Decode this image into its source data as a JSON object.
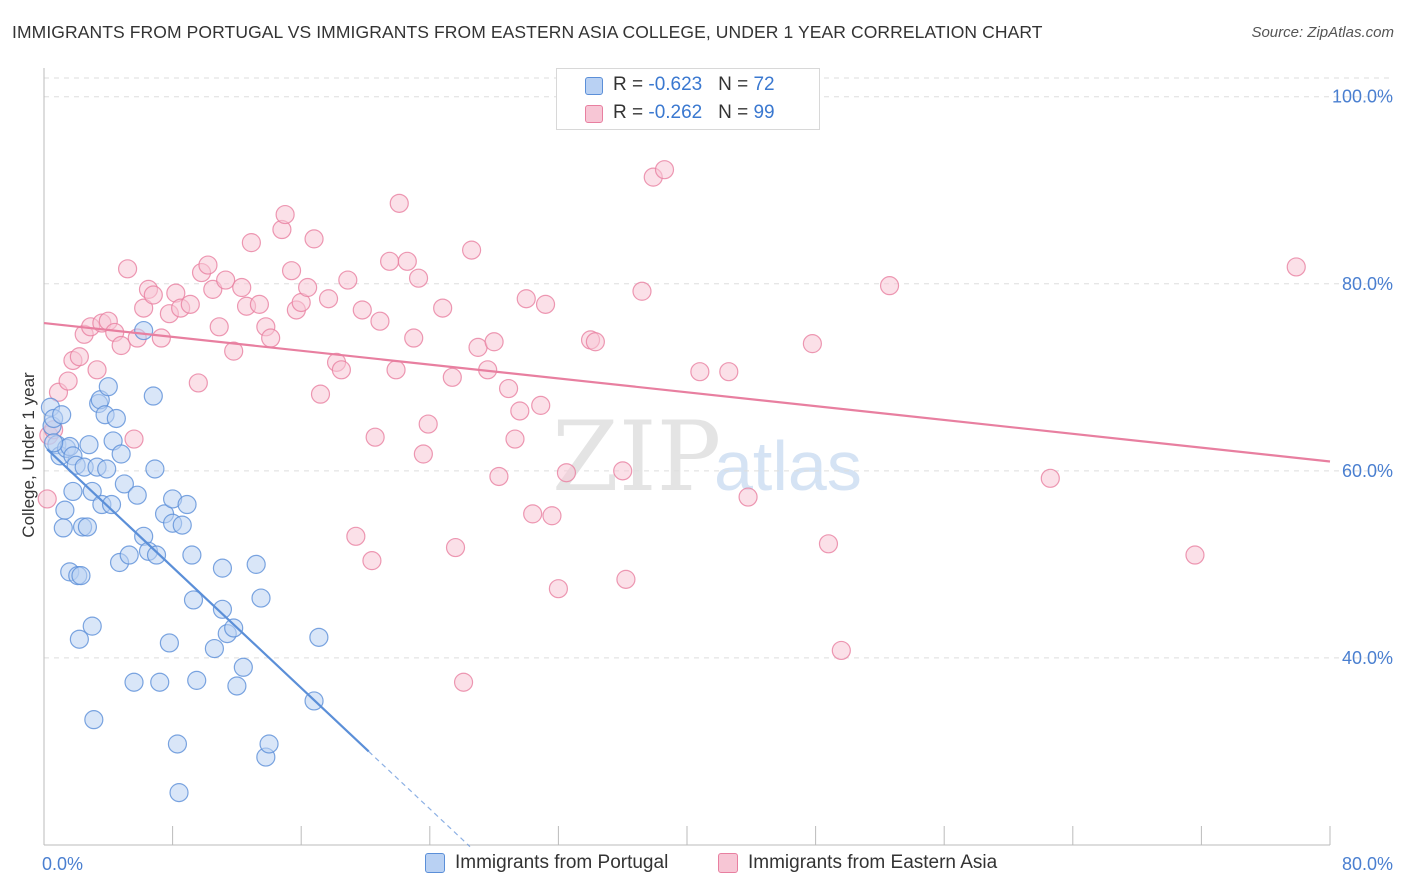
{
  "header": {
    "title": "IMMIGRANTS FROM PORTUGAL VS IMMIGRANTS FROM EASTERN ASIA COLLEGE, UNDER 1 YEAR CORRELATION CHART",
    "source": "Source: ZipAtlas.com"
  },
  "legend": {
    "rows": [
      {
        "r_label": "R = ",
        "r_value": "-0.623",
        "n_label": "N = ",
        "n_value": "72",
        "color": "#5b8fd8"
      },
      {
        "r_label": "R = ",
        "r_value": "-0.262",
        "n_label": "N = ",
        "n_value": "99",
        "color": "#e87fa0"
      }
    ]
  },
  "bottom_legend": {
    "series_a": "Immigrants from Portugal",
    "series_b": "Immigrants from Eastern Asia"
  },
  "watermark": {
    "zip": "ZIP",
    "atlas": "atlas"
  },
  "chart_data": {
    "type": "scatter",
    "title": "IMMIGRANTS FROM PORTUGAL VS IMMIGRANTS FROM EASTERN ASIA COLLEGE, UNDER 1 YEAR CORRELATION CHART",
    "xlabel": "",
    "ylabel": "College, Under 1 year",
    "xlim": [
      0,
      80
    ],
    "ylim": [
      20,
      102
    ],
    "x_tick_labels": [
      "0.0%",
      "80.0%"
    ],
    "y_tick_labels": [
      "40.0%",
      "60.0%",
      "80.0%",
      "100.0%"
    ],
    "y_ticks": [
      40,
      60,
      80,
      100
    ],
    "grid": true,
    "series": [
      {
        "name": "Immigrants from Portugal",
        "color": "#5b8fd8",
        "fill": "#b9d1f3",
        "R": -0.623,
        "N": 72,
        "trend": {
          "x0": 0.2,
          "y0": 62.3,
          "x1": 20.2,
          "y1": 30.0,
          "dash_to_x": 26.5
        },
        "points": [
          [
            0.4,
            66.8
          ],
          [
            0.5,
            64.8
          ],
          [
            0.6,
            65.6
          ],
          [
            0.8,
            62.8
          ],
          [
            1.0,
            61.6
          ],
          [
            1.1,
            66.0
          ],
          [
            1.2,
            53.9
          ],
          [
            1.3,
            55.8
          ],
          [
            1.4,
            62.4
          ],
          [
            1.6,
            49.2
          ],
          [
            1.6,
            62.6
          ],
          [
            1.8,
            61.6
          ],
          [
            1.8,
            57.8
          ],
          [
            2.0,
            60.6
          ],
          [
            2.1,
            48.8
          ],
          [
            2.2,
            42.0
          ],
          [
            2.3,
            48.8
          ],
          [
            2.4,
            54.0
          ],
          [
            2.5,
            60.4
          ],
          [
            2.7,
            54.0
          ],
          [
            2.8,
            62.8
          ],
          [
            3.0,
            57.8
          ],
          [
            3.0,
            43.4
          ],
          [
            3.1,
            33.4
          ],
          [
            3.3,
            60.4
          ],
          [
            3.4,
            67.2
          ],
          [
            3.5,
            67.6
          ],
          [
            3.6,
            56.4
          ],
          [
            3.8,
            66.0
          ],
          [
            3.9,
            60.2
          ],
          [
            4.0,
            69.0
          ],
          [
            4.2,
            56.4
          ],
          [
            4.3,
            63.2
          ],
          [
            4.5,
            65.6
          ],
          [
            4.7,
            50.2
          ],
          [
            4.8,
            61.8
          ],
          [
            5.0,
            58.6
          ],
          [
            5.3,
            51.0
          ],
          [
            5.6,
            37.4
          ],
          [
            5.8,
            57.4
          ],
          [
            6.2,
            53.0
          ],
          [
            6.2,
            75.0
          ],
          [
            6.5,
            51.4
          ],
          [
            6.8,
            68.0
          ],
          [
            6.9,
            60.2
          ],
          [
            7.0,
            51.0
          ],
          [
            7.2,
            37.4
          ],
          [
            7.5,
            55.4
          ],
          [
            7.8,
            41.6
          ],
          [
            8.0,
            57.0
          ],
          [
            8.0,
            54.4
          ],
          [
            8.3,
            30.8
          ],
          [
            8.4,
            25.6
          ],
          [
            8.6,
            54.2
          ],
          [
            8.9,
            56.4
          ],
          [
            9.2,
            51.0
          ],
          [
            9.3,
            46.2
          ],
          [
            9.5,
            37.6
          ],
          [
            10.6,
            41.0
          ],
          [
            11.1,
            49.6
          ],
          [
            11.1,
            45.2
          ],
          [
            11.4,
            42.6
          ],
          [
            11.8,
            43.2
          ],
          [
            12.0,
            37.0
          ],
          [
            12.4,
            39.0
          ],
          [
            13.2,
            50.0
          ],
          [
            13.5,
            46.4
          ],
          [
            13.8,
            29.4
          ],
          [
            14.0,
            30.8
          ],
          [
            16.8,
            35.4
          ],
          [
            17.1,
            42.2
          ],
          [
            0.6,
            63.0
          ]
        ]
      },
      {
        "name": "Immigrants from Eastern Asia",
        "color": "#e87fa0",
        "fill": "#f7c6d5",
        "R": -0.262,
        "N": 99,
        "trend": {
          "x0": 0.0,
          "y0": 75.8,
          "x1": 80.0,
          "y1": 61.0
        },
        "points": [
          [
            0.3,
            63.8
          ],
          [
            0.6,
            64.4
          ],
          [
            0.9,
            68.4
          ],
          [
            1.5,
            69.6
          ],
          [
            1.8,
            71.8
          ],
          [
            2.2,
            72.2
          ],
          [
            2.5,
            74.6
          ],
          [
            2.9,
            75.4
          ],
          [
            3.3,
            70.8
          ],
          [
            3.6,
            75.8
          ],
          [
            4.0,
            76.0
          ],
          [
            4.4,
            74.8
          ],
          [
            4.8,
            73.4
          ],
          [
            5.2,
            81.6
          ],
          [
            5.6,
            63.4
          ],
          [
            5.8,
            74.2
          ],
          [
            6.2,
            77.4
          ],
          [
            6.5,
            79.4
          ],
          [
            6.8,
            78.8
          ],
          [
            7.3,
            74.2
          ],
          [
            7.8,
            76.8
          ],
          [
            8.2,
            79.0
          ],
          [
            8.5,
            77.4
          ],
          [
            9.1,
            77.8
          ],
          [
            9.6,
            69.4
          ],
          [
            9.8,
            81.2
          ],
          [
            10.2,
            82.0
          ],
          [
            10.5,
            79.4
          ],
          [
            10.9,
            75.4
          ],
          [
            11.3,
            80.4
          ],
          [
            11.8,
            72.8
          ],
          [
            12.3,
            79.6
          ],
          [
            12.6,
            77.6
          ],
          [
            12.9,
            84.4
          ],
          [
            13.4,
            77.8
          ],
          [
            13.8,
            75.4
          ],
          [
            14.1,
            74.2
          ],
          [
            14.8,
            85.8
          ],
          [
            15.0,
            87.4
          ],
          [
            15.4,
            81.4
          ],
          [
            15.7,
            77.2
          ],
          [
            16.0,
            78.0
          ],
          [
            16.4,
            79.6
          ],
          [
            16.8,
            84.8
          ],
          [
            17.2,
            68.2
          ],
          [
            17.7,
            78.4
          ],
          [
            18.2,
            71.6
          ],
          [
            18.5,
            70.8
          ],
          [
            18.9,
            80.4
          ],
          [
            19.4,
            53.0
          ],
          [
            19.8,
            77.2
          ],
          [
            20.4,
            50.4
          ],
          [
            20.6,
            63.6
          ],
          [
            20.9,
            76.0
          ],
          [
            21.5,
            82.4
          ],
          [
            21.9,
            70.8
          ],
          [
            22.1,
            88.6
          ],
          [
            22.6,
            82.4
          ],
          [
            23.0,
            74.2
          ],
          [
            23.3,
            80.6
          ],
          [
            23.6,
            61.8
          ],
          [
            23.9,
            65.0
          ],
          [
            24.8,
            77.4
          ],
          [
            25.4,
            70.0
          ],
          [
            25.6,
            51.8
          ],
          [
            26.1,
            37.4
          ],
          [
            26.6,
            83.6
          ],
          [
            27.0,
            73.2
          ],
          [
            27.6,
            70.8
          ],
          [
            28.0,
            73.8
          ],
          [
            28.3,
            59.4
          ],
          [
            28.9,
            68.8
          ],
          [
            29.3,
            63.4
          ],
          [
            29.6,
            66.4
          ],
          [
            30.0,
            78.4
          ],
          [
            30.4,
            55.4
          ],
          [
            30.9,
            67.0
          ],
          [
            31.2,
            77.8
          ],
          [
            31.6,
            55.2
          ],
          [
            32.0,
            47.4
          ],
          [
            32.5,
            59.8
          ],
          [
            34.0,
            74.0
          ],
          [
            34.3,
            73.8
          ],
          [
            36.0,
            60.0
          ],
          [
            36.2,
            48.4
          ],
          [
            37.2,
            79.2
          ],
          [
            37.9,
            91.4
          ],
          [
            38.6,
            92.2
          ],
          [
            40.8,
            70.6
          ],
          [
            42.6,
            70.6
          ],
          [
            43.8,
            57.2
          ],
          [
            47.8,
            73.6
          ],
          [
            48.8,
            52.2
          ],
          [
            49.6,
            40.8
          ],
          [
            52.6,
            79.8
          ],
          [
            62.6,
            59.2
          ],
          [
            71.6,
            51.0
          ],
          [
            77.9,
            81.8
          ],
          [
            0.2,
            57.0
          ]
        ]
      }
    ]
  }
}
